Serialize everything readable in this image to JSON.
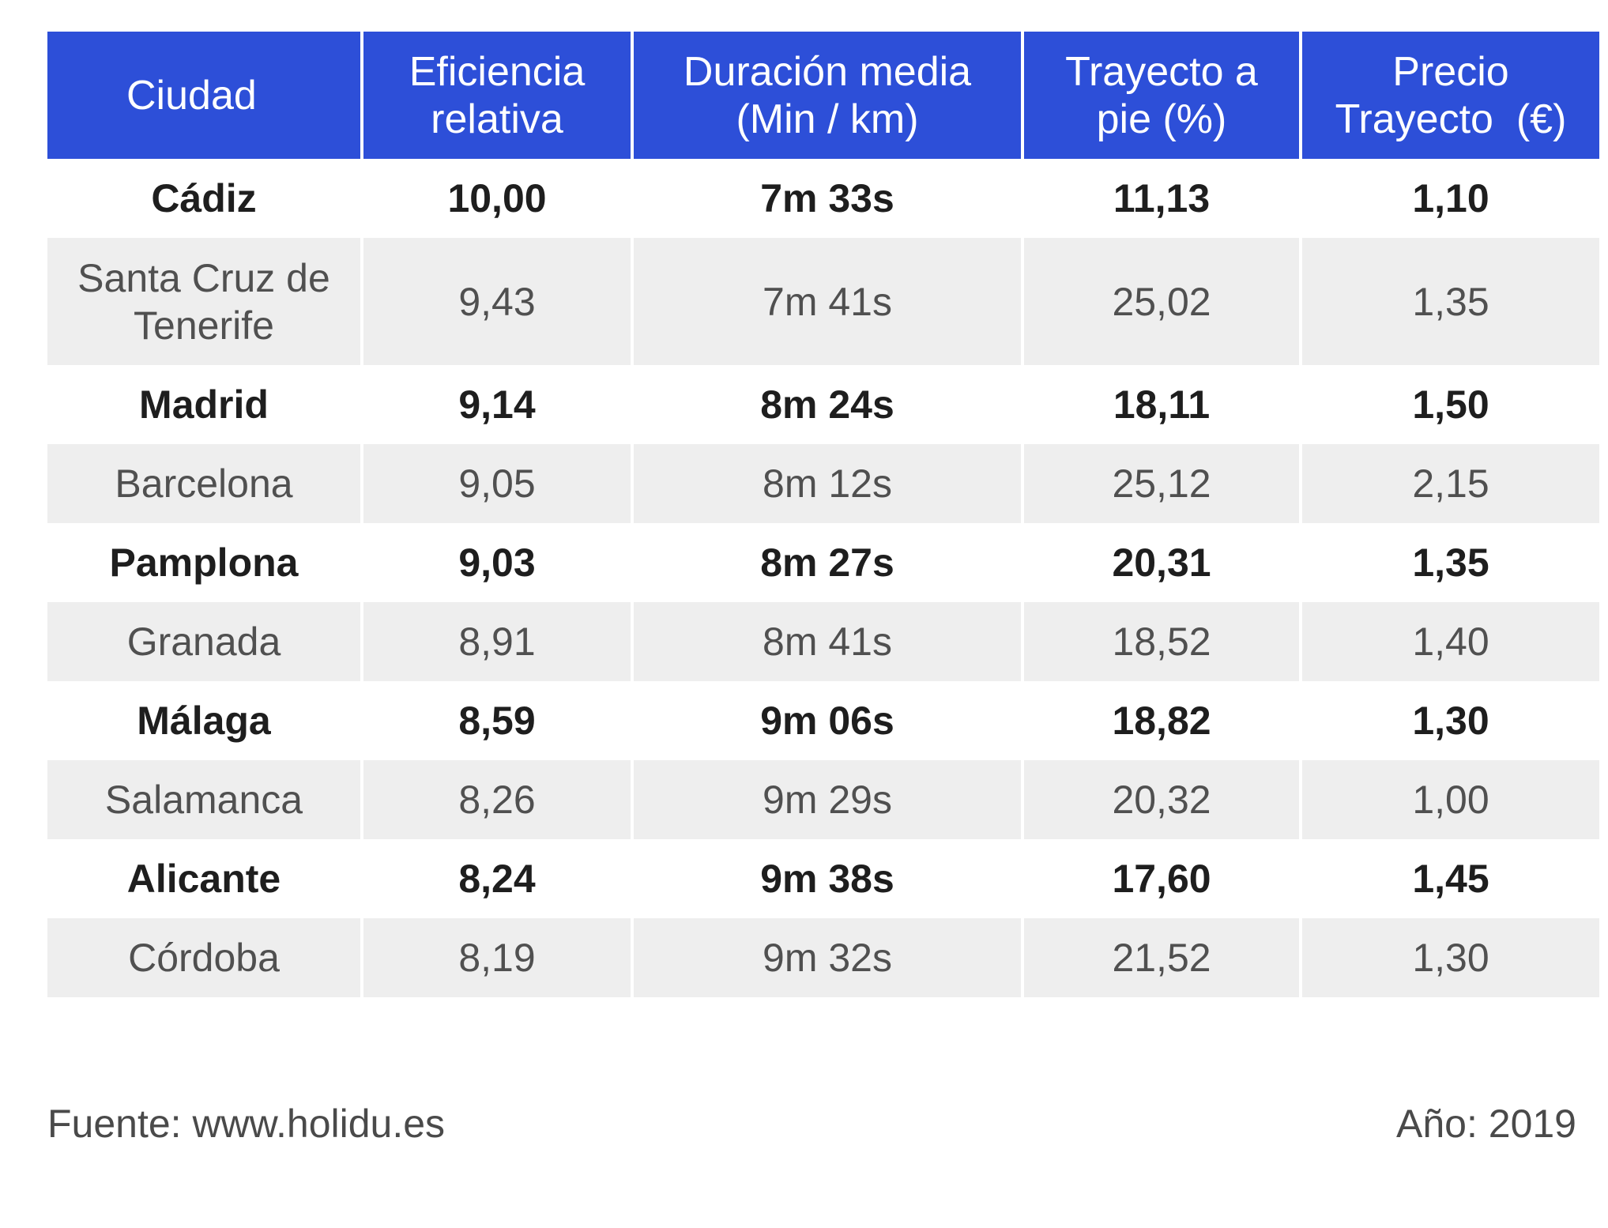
{
  "table": {
    "headers": [
      "Ciudad",
      "Eficiencia relativa",
      "Duración media (Min / km)",
      "Trayecto a pie (%)",
      "Precio Trayecto  (€)"
    ],
    "header_lines": [
      [
        "Ciudad"
      ],
      [
        "Eficiencia",
        "relativa"
      ],
      [
        "Duración media",
        "(Min / km)"
      ],
      [
        "Trayecto a",
        "pie (%)"
      ],
      [
        "Precio",
        "Trayecto  (€)"
      ]
    ],
    "rows": [
      {
        "city": [
          "Cádiz"
        ],
        "efficiency": "10,00",
        "duration": "7m 33s",
        "walk": "11,13",
        "price": "1,10"
      },
      {
        "city": [
          "Santa Cruz de",
          "Tenerife"
        ],
        "efficiency": "9,43",
        "duration": "7m 41s",
        "walk": "25,02",
        "price": "1,35"
      },
      {
        "city": [
          "Madrid"
        ],
        "efficiency": "9,14",
        "duration": "8m 24s",
        "walk": "18,11",
        "price": "1,50"
      },
      {
        "city": [
          "Barcelona"
        ],
        "efficiency": "9,05",
        "duration": "8m 12s",
        "walk": "25,12",
        "price": "2,15"
      },
      {
        "city": [
          "Pamplona"
        ],
        "efficiency": "9,03",
        "duration": "8m 27s",
        "walk": "20,31",
        "price": "1,35"
      },
      {
        "city": [
          "Granada"
        ],
        "efficiency": "8,91",
        "duration": "8m 41s",
        "walk": "18,52",
        "price": "1,40"
      },
      {
        "city": [
          "Málaga"
        ],
        "efficiency": "8,59",
        "duration": "9m 06s",
        "walk": "18,82",
        "price": "1,30"
      },
      {
        "city": [
          "Salamanca"
        ],
        "efficiency": "8,26",
        "duration": "9m 29s",
        "walk": "20,32",
        "price": "1,00"
      },
      {
        "city": [
          "Alicante"
        ],
        "efficiency": "8,24",
        "duration": "9m 38s",
        "walk": "17,60",
        "price": "1,45"
      },
      {
        "city": [
          "Córdoba"
        ],
        "efficiency": "8,19",
        "duration": "9m 32s",
        "walk": "21,52",
        "price": "1,30"
      }
    ]
  },
  "footer": {
    "source": "Fuente: www.holidu.es",
    "year": "Año: 2019"
  },
  "colors": {
    "header_background": "#2d4fd8",
    "header_text": "#ffffff",
    "row_alt_background": "#eeeeee",
    "row_background": "#ffffff"
  }
}
